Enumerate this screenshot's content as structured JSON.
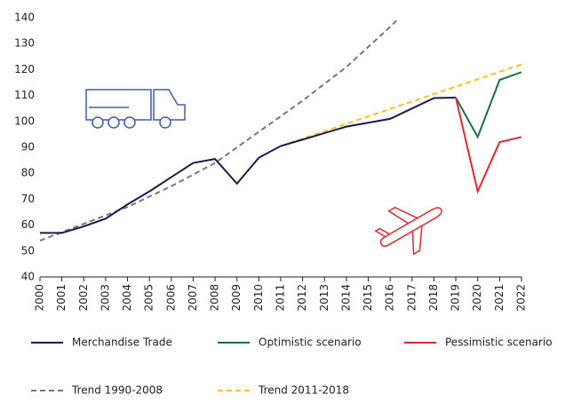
{
  "chart_data": {
    "type": "line",
    "xlim": [
      2000,
      2022
    ],
    "xticks": [
      2000,
      2001,
      2002,
      2003,
      2004,
      2005,
      2006,
      2007,
      2008,
      2009,
      2010,
      2011,
      2012,
      2013,
      2014,
      2015,
      2016,
      2017,
      2018,
      2019,
      2020,
      2021,
      2022
    ],
    "ylim": [
      40,
      140
    ],
    "yticks": [
      40,
      50,
      60,
      70,
      80,
      90,
      100,
      110,
      120,
      130,
      140
    ],
    "series": [
      {
        "name": "Merchandise Trade",
        "color": "#1b1a4f",
        "dash": false,
        "x": [
          2000,
          2001,
          2002,
          2003,
          2004,
          2005,
          2006,
          2007,
          2008,
          2009,
          2010,
          2011,
          2012,
          2013,
          2014,
          2015,
          2016,
          2017,
          2018,
          2019
        ],
        "values": [
          57,
          57,
          59.5,
          62.5,
          68,
          73,
          78.5,
          84,
          85.5,
          76,
          86,
          90.5,
          93,
          95.5,
          98,
          99.5,
          101,
          105,
          109,
          109.2
        ]
      },
      {
        "name": "Optimistic scenario",
        "color": "#1c6b50",
        "dash": false,
        "x": [
          2019,
          2020,
          2021,
          2022
        ],
        "values": [
          109.2,
          94,
          116,
          119
        ]
      },
      {
        "name": "Pessimistic scenario",
        "color": "#e0282e",
        "dash": false,
        "x": [
          2019,
          2020,
          2021,
          2022
        ],
        "values": [
          109.2,
          73,
          92,
          94
        ]
      },
      {
        "name": "Trend 1990-2008",
        "color": "#777777",
        "dash": true,
        "x": [
          2000,
          2002,
          2004,
          2006,
          2008,
          2010,
          2012,
          2014,
          2016,
          2016.3
        ],
        "values": [
          54,
          60.5,
          67,
          75,
          84,
          96,
          108,
          121,
          136.5,
          139
        ]
      },
      {
        "name": "Trend 2011-2018",
        "color": "#f5c518",
        "dash": true,
        "x": [
          2011,
          2022
        ],
        "values": [
          90.5,
          122
        ]
      }
    ]
  }
}
